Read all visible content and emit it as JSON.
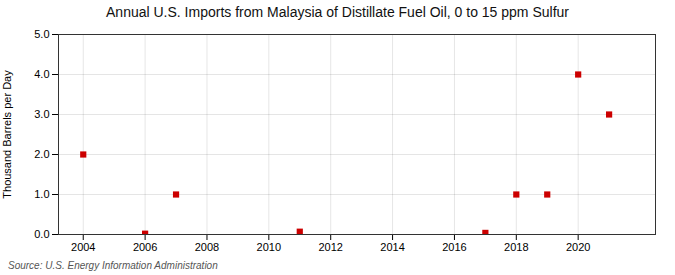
{
  "chart_data": {
    "type": "scatter",
    "title": "Annual U.S. Imports from Malaysia of Distillate Fuel Oil, 0 to 15 ppm Sulfur",
    "ylabel": "Thousand Barrels per Day",
    "source": "Source: U.S. Energy Information Administration",
    "x": [
      2004,
      2006,
      2007,
      2011,
      2017,
      2018,
      2019,
      2020,
      2021
    ],
    "values": [
      2.0,
      0.02,
      1.0,
      0.07,
      0.04,
      1.0,
      1.0,
      4.0,
      3.0
    ],
    "color": "#cc0000",
    "marker": "square",
    "xlim": [
      2003.2,
      2022.5
    ],
    "xticks": [
      2004,
      2006,
      2008,
      2010,
      2012,
      2014,
      2016,
      2018,
      2020
    ],
    "ylim": [
      0.0,
      5.0
    ],
    "yticks": [
      {
        "value": 0,
        "label": "0.0"
      },
      {
        "value": 1,
        "label": "1.0"
      },
      {
        "value": 2,
        "label": "2.0"
      },
      {
        "value": 3,
        "label": "3.0"
      },
      {
        "value": 4,
        "label": "4.0"
      },
      {
        "value": 5,
        "label": "5.0"
      }
    ],
    "grid": true
  }
}
